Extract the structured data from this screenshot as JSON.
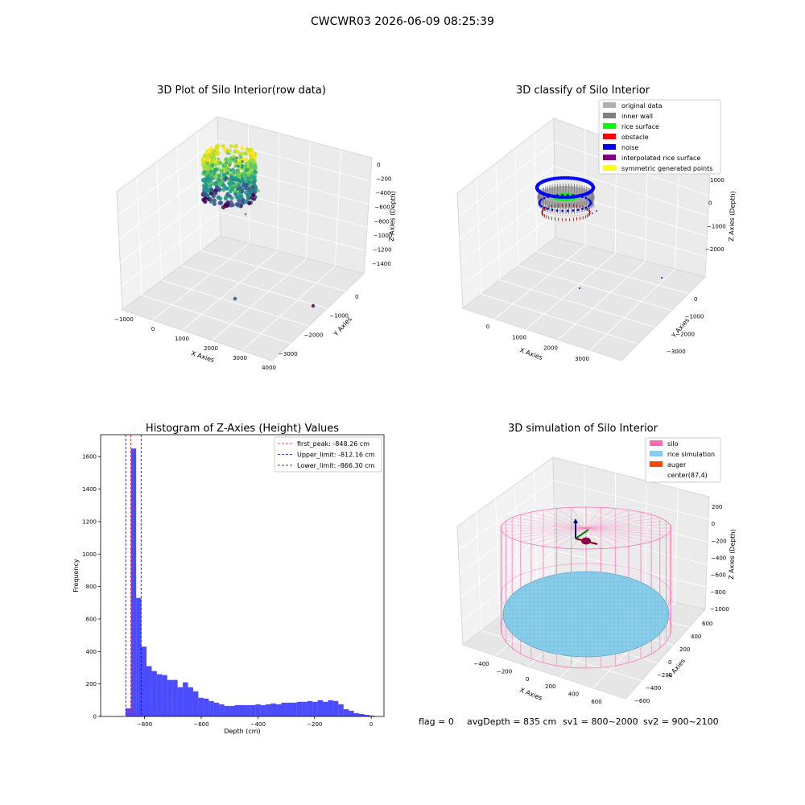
{
  "figure": {
    "title": "CWCWR03 2026-06-09 08:25:39",
    "status": {
      "flag": "flag = 0",
      "avg_depth": "avgDepth = 835 cm",
      "sv1": "sv1 = 800~2000",
      "sv2": "sv2 = 900~2100"
    }
  },
  "colors": {
    "silo": "#ff69b4",
    "rice_simulation": "#87ceeb",
    "auger": "#ff4500",
    "histogram_bar": "#0000ff",
    "first_peak_line": "#ff0000",
    "limit_lines": "#00008b",
    "original_data": "#b0b0b0",
    "inner_wall": "#808080",
    "rice_surface": "#00ff00",
    "obstacle": "#ff0000",
    "noise": "#0000ff",
    "interpolated_rice_surface": "#800080",
    "symmetric_generated_points": "#ffff00"
  },
  "chart_data": [
    {
      "type": "scatter",
      "subtype": "3d",
      "title": "3D Plot of Silo Interior(row data)",
      "xlabel": "X Axies",
      "ylabel": "Y Axies",
      "zlabel": "Z Axies (Depth)",
      "x_ticks": [
        "−1000",
        "0",
        "1000",
        "2000",
        "3000",
        "4000"
      ],
      "y_ticks": [
        "0",
        "−1000",
        "−2000",
        "−3000"
      ],
      "z_ticks": [
        "0",
        "−200",
        "−400",
        "−600",
        "−800",
        "−1000",
        "−1200",
        "−1400"
      ],
      "colormap": "viridis",
      "outliers": [
        {
          "x": 1300,
          "y": -1200,
          "z": -1400
        },
        {
          "x": 3900,
          "y": -500,
          "z": -1350
        }
      ]
    },
    {
      "type": "scatter",
      "subtype": "3d",
      "title": "3D classify of Silo Interior",
      "xlabel": "X Axies",
      "ylabel": "Y Axies",
      "zlabel": "Z Axies (Depth)",
      "x_ticks": [
        "0",
        "1000",
        "2000",
        "3000"
      ],
      "y_ticks": [
        "0",
        "−1000",
        "−2000",
        "−3000"
      ],
      "z_ticks": [
        "1000",
        "0",
        "−1000",
        "−2000"
      ],
      "legend_placement": "top-right",
      "legend": [
        {
          "label": "original data",
          "color": "#b0b0b0"
        },
        {
          "label": "inner wall",
          "color": "#808080"
        },
        {
          "label": "rice surface",
          "color": "#00ff00"
        },
        {
          "label": "obstacle",
          "color": "#ff0000"
        },
        {
          "label": "noise",
          "color": "#0000ff"
        },
        {
          "label": "interpolated rice surface",
          "color": "#800080"
        },
        {
          "label": "symmetric generated points",
          "color": "#ffff00"
        }
      ]
    },
    {
      "type": "bar",
      "subtype": "histogram",
      "title": "Histogram of Z-Axies (Height) Values",
      "xlabel": "Depth (cm)",
      "ylabel": "Frequency",
      "xlim": [
        -955,
        45
      ],
      "ylim": [
        0,
        1735
      ],
      "x_ticks": [
        -800,
        -600,
        -400,
        -200,
        0
      ],
      "x_tick_labels": [
        "−800",
        "−600",
        "−400",
        "−200",
        "0"
      ],
      "y_ticks": [
        0,
        200,
        400,
        600,
        800,
        1000,
        1200,
        1400,
        1600
      ],
      "bin_start": -866.3,
      "bin_width": 18.3,
      "values": [
        50,
        1650,
        730,
        430,
        310,
        280,
        260,
        255,
        225,
        225,
        180,
        210,
        180,
        155,
        115,
        110,
        95,
        85,
        75,
        65,
        65,
        70,
        70,
        70,
        70,
        75,
        70,
        75,
        80,
        75,
        85,
        85,
        85,
        90,
        90,
        95,
        90,
        100,
        90,
        100,
        95,
        75,
        45,
        35,
        20,
        15,
        10,
        5
      ],
      "reference_lines": [
        {
          "label": "first_peak: -848.26 cm",
          "x": -848.26,
          "color": "#ff0000"
        },
        {
          "label": "Upper_limit: -812.16 cm",
          "x": -812.16,
          "color": "#00008b"
        },
        {
          "label": "Lower_limit: -866.30 cm",
          "x": -866.3,
          "color": "#00008b"
        }
      ],
      "legend_placement": "top-right"
    },
    {
      "type": "scatter",
      "subtype": "3d",
      "title": "3D simulation of Silo Interior",
      "xlabel": "X Axies",
      "ylabel": "Y Axies",
      "zlabel": "Z Axies (Depth)",
      "x_ticks": [
        "−400",
        "−200",
        "0",
        "200",
        "400",
        "600"
      ],
      "y_ticks": [
        "600",
        "400",
        "200",
        "0",
        "−200",
        "−400",
        "−600"
      ],
      "z_ticks": [
        "200",
        "0",
        "−200",
        "−400",
        "−600",
        "−800",
        "−1000"
      ],
      "legend_placement": "top-right",
      "legend": [
        {
          "label": "silo",
          "color": "#ff69b4"
        },
        {
          "label": "rice simulation",
          "color": "#87ceeb"
        },
        {
          "label": "auger",
          "color": "#ff4500"
        },
        {
          "label": "center(87,4)",
          "color": ""
        }
      ]
    }
  ]
}
